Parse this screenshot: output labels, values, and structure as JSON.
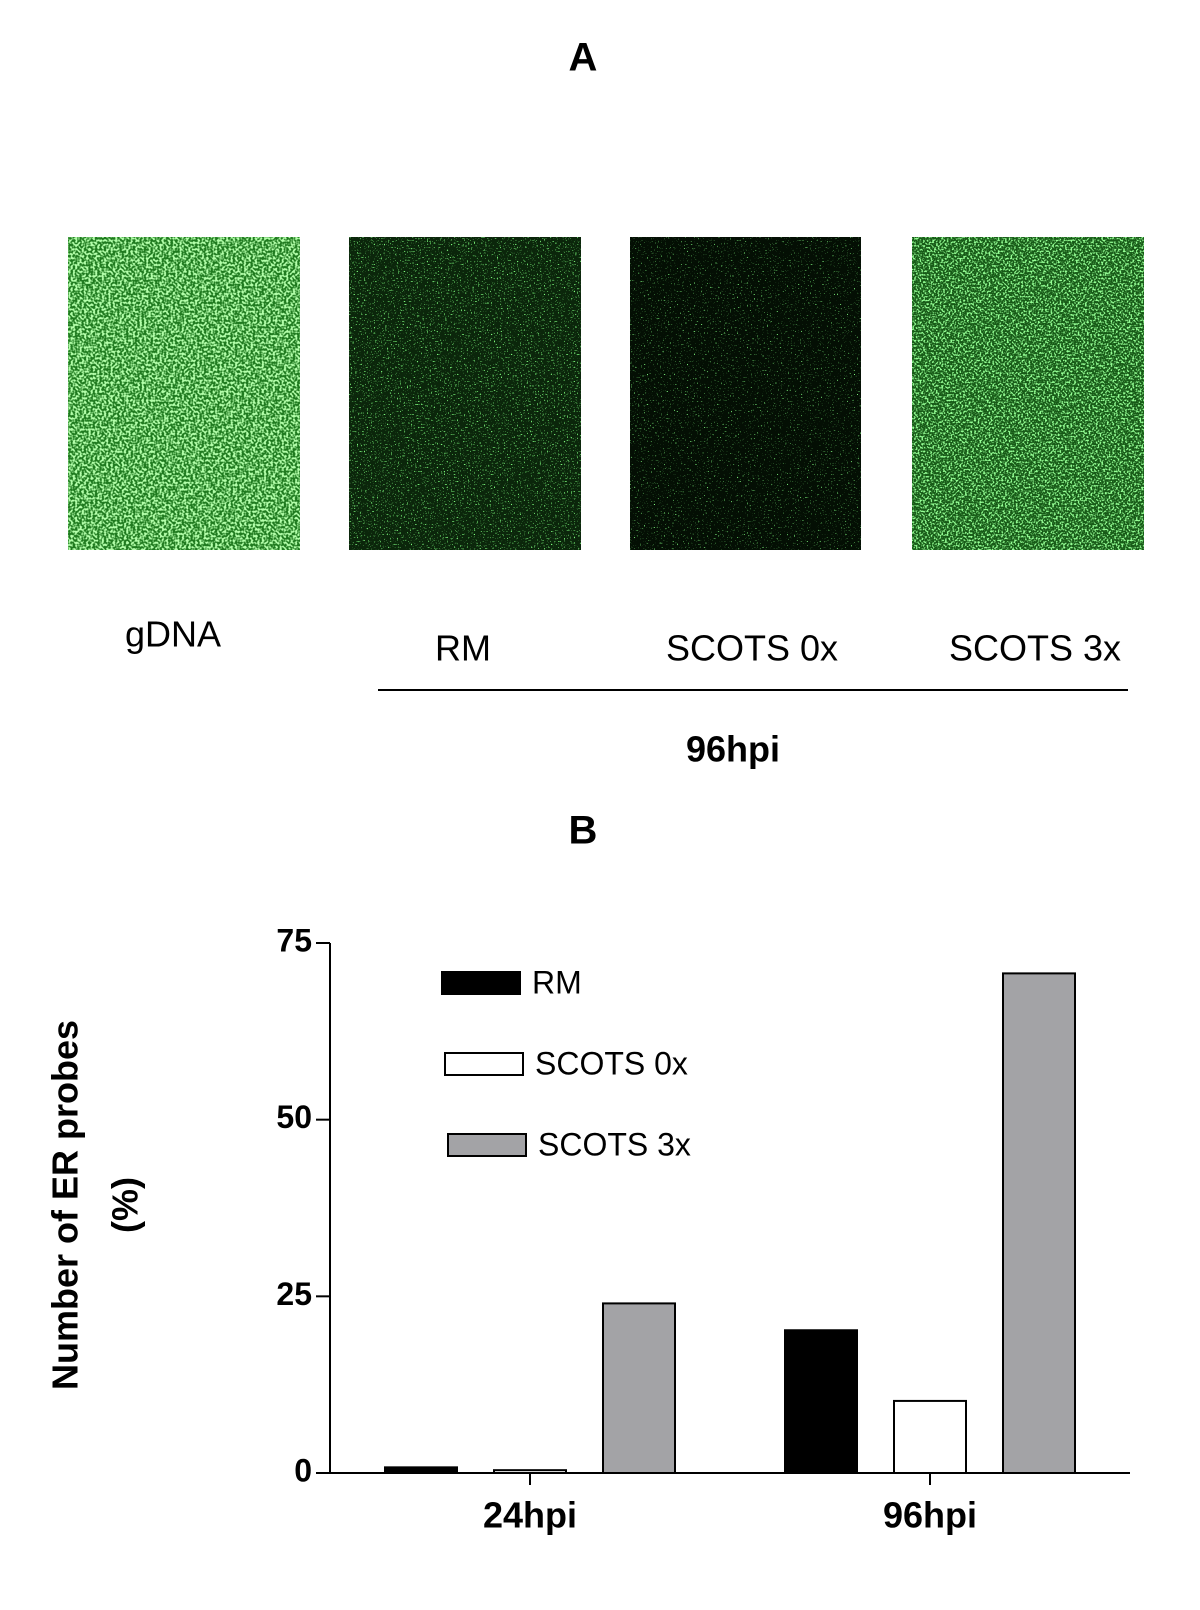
{
  "panel_a": {
    "title": "A",
    "image_labels": [
      "gDNA",
      "RM",
      "SCOTS 0x",
      "SCOTS 3x"
    ],
    "group_label": "96hpi"
  },
  "chart_data": {
    "type": "bar",
    "title": "B",
    "ylabel": [
      "Number of ER probes",
      "(%)"
    ],
    "categories": [
      "24hpi",
      "96hpi"
    ],
    "series": [
      {
        "name": "RM",
        "color": "#000000",
        "values": [
          0.8,
          20.2
        ]
      },
      {
        "name": "SCOTS 0x",
        "color": "#ffffff",
        "values": [
          0.4,
          10.2
        ]
      },
      {
        "name": "SCOTS 3x",
        "color": "#a3a3a6",
        "values": [
          24,
          70.7
        ]
      }
    ],
    "ylim": [
      0,
      75
    ],
    "yticks": [
      0,
      25,
      50,
      75
    ],
    "grid": false,
    "legend": "upper left"
  }
}
